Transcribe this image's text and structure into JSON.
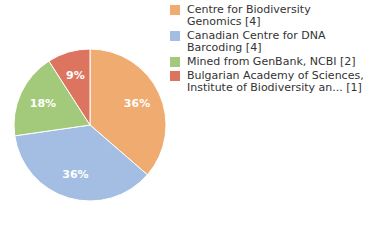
{
  "chart_data": {
    "type": "pie",
    "categories": [
      "Centre for Biodiversity Genomics [4]",
      "Canadian Centre for DNA Barcoding [4]",
      "Mined from GenBank, NCBI [2]",
      "Bulgarian Academy of Sciences, Institute of Biodiversity an... [1]"
    ],
    "values": [
      36,
      36,
      18,
      9
    ],
    "value_labels": [
      "36%",
      "36%",
      "18%",
      "9%"
    ],
    "colors": [
      "#efab70",
      "#a3bde3",
      "#a3c97a",
      "#dd7460"
    ],
    "data_labels": true,
    "legend": "right"
  }
}
